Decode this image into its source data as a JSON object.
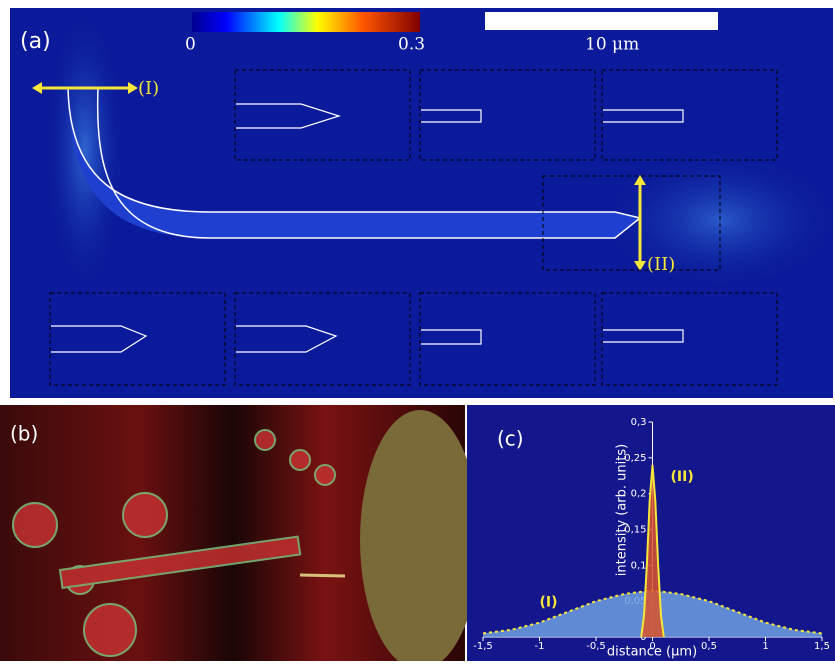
{
  "panel_a": {
    "label": "(a)",
    "colorbar_min": "0",
    "colorbar_max": "0.3",
    "scale_bar": "10 μm",
    "marker_1": "(I)",
    "marker_2": "(II)"
  },
  "panel_b": {
    "label": "(b)"
  },
  "chart_data": {
    "type": "line",
    "label": "(c)",
    "y_label": "intensity (arb. units)",
    "x_label": "distance (μm)",
    "xlim": [
      -1.5,
      1.5
    ],
    "ylim": [
      0,
      0.3
    ],
    "xticks": [
      {
        "value": -1.5,
        "label": "-1,5"
      },
      -1,
      {
        "value": -0.5,
        "label": "-0,5"
      },
      0,
      {
        "value": 0.5,
        "label": "0,5"
      },
      1,
      {
        "value": 1.5,
        "label": "1,5"
      }
    ],
    "yticks": [
      0,
      {
        "value": 0.05,
        "label": "0,05"
      },
      {
        "value": 0.1,
        "label": "0,1"
      },
      {
        "value": 0.15,
        "label": "0,15"
      },
      {
        "value": 0.2,
        "label": "0,2"
      },
      {
        "value": 0.25,
        "label": "0,25"
      },
      {
        "value": 0.3,
        "label": "0,3"
      }
    ],
    "series": [
      {
        "name": "(I)",
        "color": "#f5e63a",
        "fill": "#6f9fe0",
        "style": "dotted",
        "x": [
          -1.5,
          -1.25,
          -1,
          -0.75,
          -0.5,
          -0.25,
          0,
          0.25,
          0.5,
          0.75,
          1,
          1.25,
          1.5
        ],
        "values": [
          0.005,
          0.01,
          0.02,
          0.035,
          0.05,
          0.06,
          0.065,
          0.06,
          0.05,
          0.035,
          0.02,
          0.01,
          0.005
        ]
      },
      {
        "name": "(II)",
        "color": "#f5e63a",
        "fill": "#d9532c",
        "style": "solid",
        "x": [
          -0.1,
          -0.075,
          -0.05,
          -0.025,
          0,
          0.025,
          0.05,
          0.075,
          0.1
        ],
        "values": [
          0,
          0.03,
          0.1,
          0.19,
          0.24,
          0.19,
          0.1,
          0.03,
          0
        ]
      }
    ]
  }
}
